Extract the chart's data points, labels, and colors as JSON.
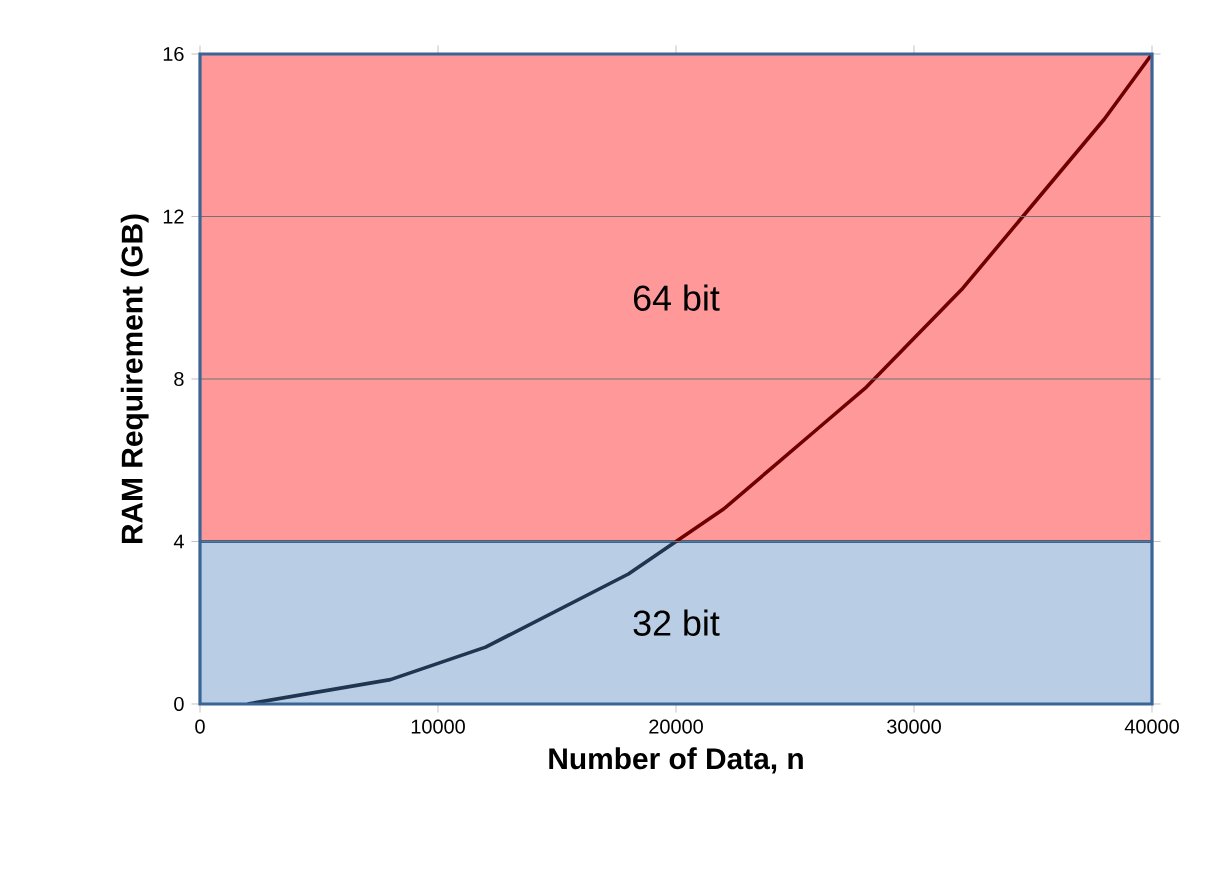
{
  "chart_data": {
    "type": "line",
    "xlabel": "Number of Data, n",
    "ylabel": "RAM Requirement (GB)",
    "xlim": [
      0,
      40000
    ],
    "ylim": [
      0,
      16
    ],
    "xticks": [
      0,
      10000,
      20000,
      30000,
      40000
    ],
    "yticks": [
      0,
      4,
      8,
      12,
      16
    ],
    "grid": "y",
    "marker": "none",
    "line_style": "solid",
    "series": [
      {
        "color": "#1f3550",
        "x": [
          2000,
          4000,
          6000,
          8000,
          10000,
          12000,
          14000,
          16000,
          18000,
          20000
        ],
        "values": [
          0,
          0.2,
          0.4,
          0.6,
          1.0,
          1.4,
          2.0,
          2.6,
          3.2,
          4
        ]
      },
      {
        "color": "#700000",
        "x": [
          20000,
          22000,
          24000,
          26000,
          28000,
          30000,
          32000,
          34000,
          36000,
          38000,
          40000
        ],
        "values": [
          4,
          4.8,
          5.8,
          6.8,
          7.8,
          9,
          10.2,
          11.6,
          13,
          14.4,
          16
        ]
      }
    ],
    "ref_lines": [
      {
        "axis": "y",
        "value": 4,
        "color": "#3a6496"
      }
    ],
    "bands": [
      {
        "axis": "y",
        "from": 0,
        "to": 4,
        "label": "32 bit",
        "color": "#b9cde5"
      },
      {
        "axis": "y",
        "from": 4,
        "to": 16,
        "label": "64 bit",
        "color": "#ff9999"
      }
    ]
  }
}
